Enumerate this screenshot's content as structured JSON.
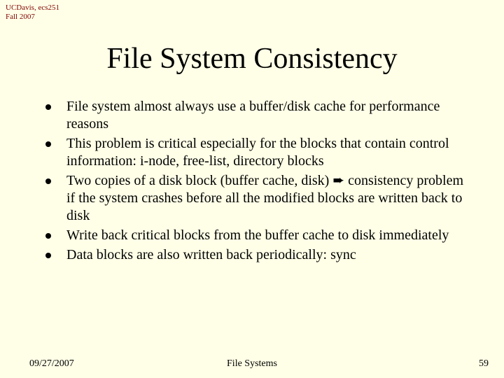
{
  "header": {
    "line1": "UCDavis, ecs251",
    "line2": "Fall 2007",
    "color": "#800000",
    "fontsize": 11
  },
  "title": {
    "text": "File System Consistency",
    "fontsize": 42,
    "color": "#000000"
  },
  "bullets": {
    "fontsize": 20,
    "dot_color": "#000000",
    "text_color": "#000000",
    "items": [
      "File system almost always use a buffer/disk cache for performance reasons",
      "This problem is critical especially for the blocks that contain control information:  i-node, free-list, directory blocks",
      "Two copies of a disk block (buffer cache, disk) ➨ consistency problem if the system crashes before all the modified blocks are written back to disk",
      "Write back critical blocks from the buffer cache to disk immediately",
      "Data blocks are also written back periodically: sync"
    ]
  },
  "footer": {
    "date": "09/27/2007",
    "center": "File Systems",
    "page": "59",
    "fontsize": 14,
    "color": "#000000"
  },
  "background_color": "#ffffe7"
}
